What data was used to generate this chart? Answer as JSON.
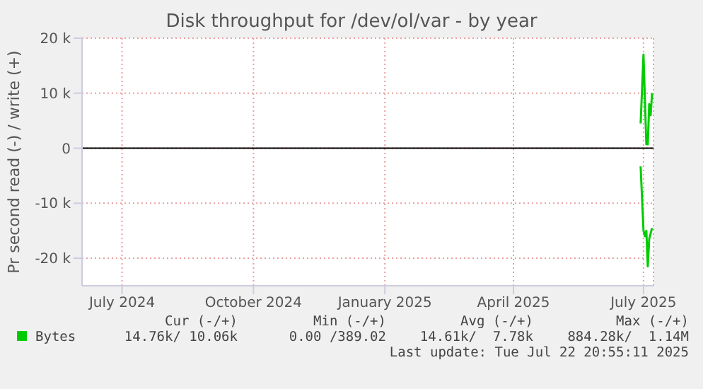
{
  "chart_data": {
    "type": "line",
    "title": "Disk throughput for /dev/ol/var - by year",
    "ylabel": "Pr second read (-) / write (+)",
    "xlim": [
      "2024-06-17",
      "2025-07-22"
    ],
    "xticks": [
      {
        "value": "2024-07-15",
        "label": "July 2024"
      },
      {
        "value": "2024-10-15",
        "label": "October 2024"
      },
      {
        "value": "2025-01-15",
        "label": "January 2025"
      },
      {
        "value": "2025-04-15",
        "label": "April 2025"
      },
      {
        "value": "2025-07-15",
        "label": "July 2025"
      }
    ],
    "ylim": [
      -25000,
      20000
    ],
    "yticks": [
      {
        "value": -20000,
        "label": "-20 k"
      },
      {
        "value": -10000,
        "label": "-10 k"
      },
      0,
      {
        "value": 10000,
        "label": "10 k"
      },
      {
        "value": 20000,
        "label": "20 k"
      }
    ],
    "series": [
      {
        "name": "Bytes",
        "color": "#00cc00",
        "x": [
          "2025-07-13",
          "2025-07-15",
          "2025-07-17",
          "2025-07-18",
          "2025-07-19",
          "2025-07-20",
          "2025-07-21"
        ],
        "values": [
          4500,
          17000,
          700,
          700,
          8000,
          6000,
          10000
        ]
      },
      {
        "color": "#00cc00",
        "x": [
          "2025-07-13",
          "2025-07-15",
          "2025-07-16",
          "2025-07-17",
          "2025-07-18",
          "2025-07-19",
          "2025-07-21"
        ],
        "values": [
          -3300,
          -15000,
          -16000,
          -15000,
          -21500,
          -16500,
          -14500
        ]
      }
    ],
    "ref_lines": [
      {
        "axis": "y",
        "value": 0,
        "color": "#000000"
      }
    ],
    "grid": true,
    "legend": "bottom left",
    "marker": "none",
    "line_style": "solid",
    "annotations": [
      "Cur (-/+)",
      "Min (-/+)",
      "Avg (-/+)",
      "Max (-/+)",
      "14.76k/ 10.06k",
      "0.00 /389.02",
      "14.61k/  7.78k",
      "884.28k/  1.14M",
      "Last update: Tue Jul 22 20:55:11 2025"
    ]
  }
}
